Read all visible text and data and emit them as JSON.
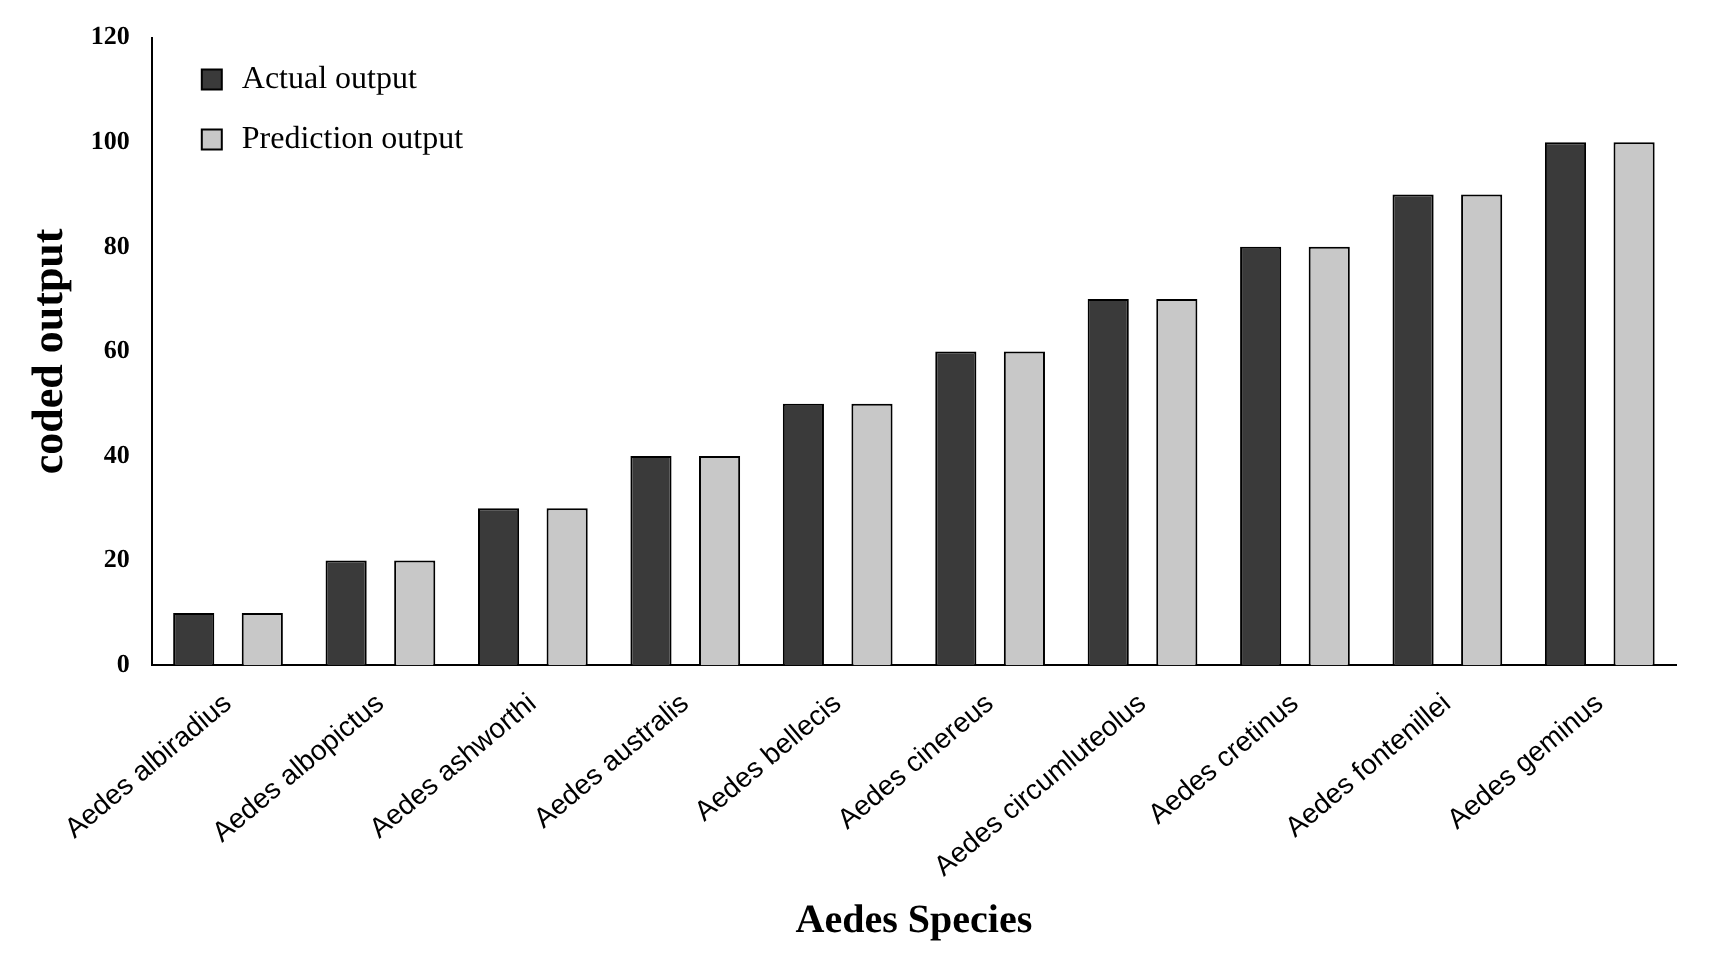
{
  "chart_data": {
    "type": "bar",
    "xlabel": "Aedes Species",
    "ylabel": "coded output",
    "categories": [
      "Aedes albiradius",
      "Aedes albopictus",
      "Aedes ashworthi",
      "Aedes australis",
      "Aedes bellecis",
      "Aedes cinereus",
      "Aedes circumluteolus",
      "Aedes cretinus",
      "Aedes fontenillei",
      "Aedes geminus"
    ],
    "series": [
      {
        "name": "Actual output",
        "color": "#3a3a3a",
        "values": [
          10,
          20,
          30,
          40,
          50,
          60,
          70,
          80,
          90,
          100
        ]
      },
      {
        "name": "Prediction output",
        "color": "#c8c8c8",
        "values": [
          10,
          20,
          30,
          40,
          50,
          60,
          70,
          80,
          90,
          100
        ]
      }
    ],
    "ylim": [
      0,
      120
    ],
    "yticks": [
      0,
      20,
      40,
      60,
      80,
      100,
      120
    ],
    "grid": false,
    "legend": "top left"
  }
}
